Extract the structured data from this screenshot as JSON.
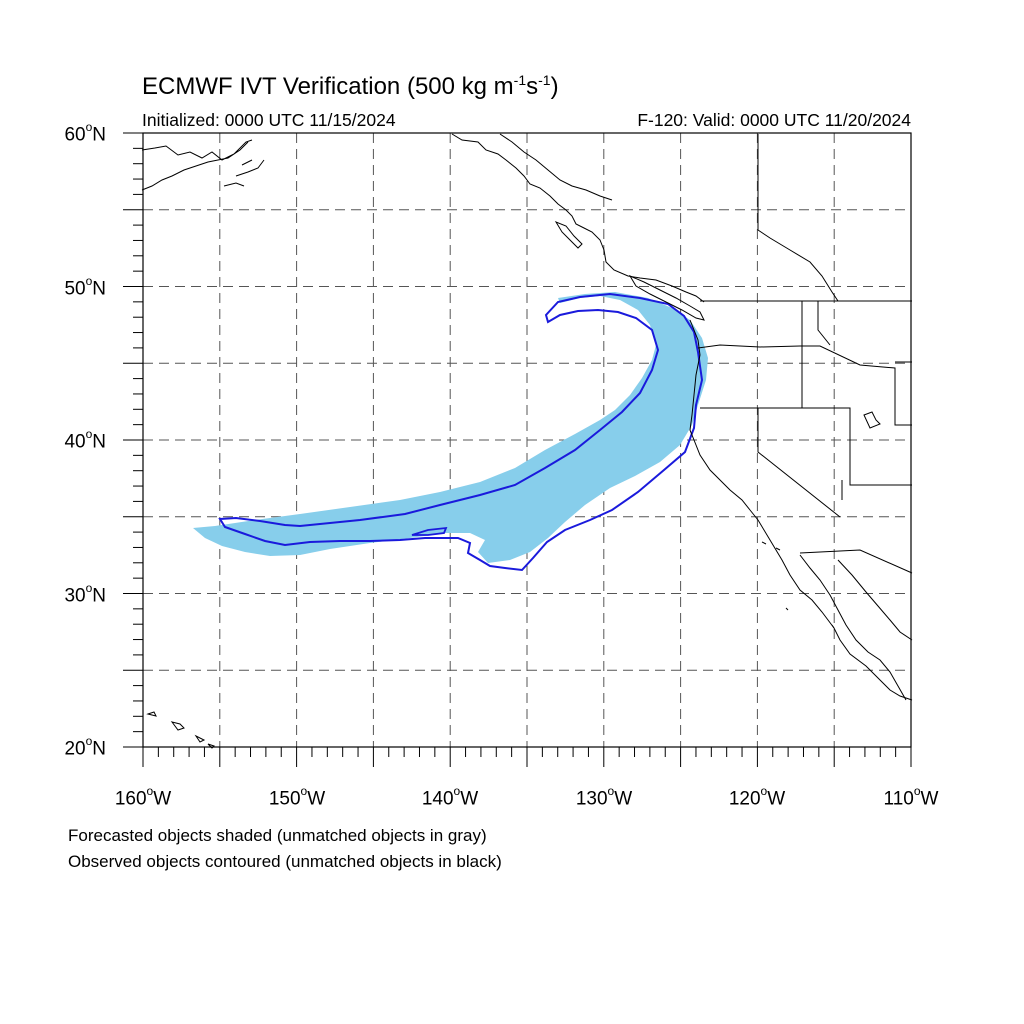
{
  "header": {
    "title_main": "ECMWF IVT Verification (500 kg m",
    "title_exp1": "-1",
    "title_mid": "s",
    "title_exp2": "-1",
    "title_end": ")",
    "initialized": "Initialized: 0000 UTC 11/15/2024",
    "valid": "F-120: Valid: 0000 UTC 11/20/2024"
  },
  "axes": {
    "lat_labels": [
      {
        "num": "60",
        "hem": "N"
      },
      {
        "num": "50",
        "hem": "N"
      },
      {
        "num": "40",
        "hem": "N"
      },
      {
        "num": "30",
        "hem": "N"
      },
      {
        "num": "20",
        "hem": "N"
      }
    ],
    "lon_labels": [
      {
        "num": "160",
        "hem": "W"
      },
      {
        "num": "150",
        "hem": "W"
      },
      {
        "num": "140",
        "hem": "W"
      },
      {
        "num": "130",
        "hem": "W"
      },
      {
        "num": "120",
        "hem": "W"
      },
      {
        "num": "110",
        "hem": "W"
      }
    ],
    "lon_range": [
      -160,
      -110
    ],
    "lat_range": [
      20,
      60
    ],
    "grid_step": 5
  },
  "legend": {
    "line1": "Forecasted objects shaded (unmatched objects in gray)",
    "line2": "Observed objects contoured (unmatched objects in black)"
  },
  "colors": {
    "forecast_fill": "#87ceeb",
    "observed_contour": "#1a1adc",
    "coastline": "#000000",
    "grid": "#555555"
  }
}
